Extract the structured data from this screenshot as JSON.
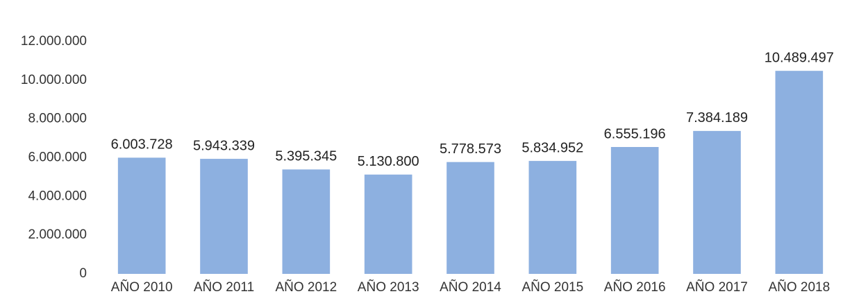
{
  "chart_data": {
    "type": "bar",
    "categories": [
      "AÑO 2010",
      "AÑO 2011",
      "AÑO 2012",
      "AÑO 2013",
      "AÑO 2014",
      "AÑO 2015",
      "AÑO 2016",
      "AÑO 2017",
      "AÑO 2018"
    ],
    "values": [
      6003728,
      5943339,
      5395345,
      5130800,
      5778573,
      5834952,
      6555196,
      7384189,
      10489497
    ],
    "value_labels": [
      "6.003.728",
      "5.943.339",
      "5.395.345",
      "5.130.800",
      "5.778.573",
      "5.834.952",
      "6.555.196",
      "7.384.189",
      "10.489.497"
    ],
    "color": "#8db0e0",
    "ylim": [
      0,
      12000000
    ],
    "yticks": [
      0,
      {
        "value": 2000000,
        "label": "2.000.000"
      },
      {
        "value": 4000000,
        "label": "4.000.000"
      },
      {
        "value": 6000000,
        "label": "6.000.000"
      },
      {
        "value": 8000000,
        "label": "8.000.000"
      },
      {
        "value": 10000000,
        "label": "10.000.000"
      },
      {
        "value": 12000000,
        "label": "12.000.000"
      }
    ],
    "grid": false
  }
}
